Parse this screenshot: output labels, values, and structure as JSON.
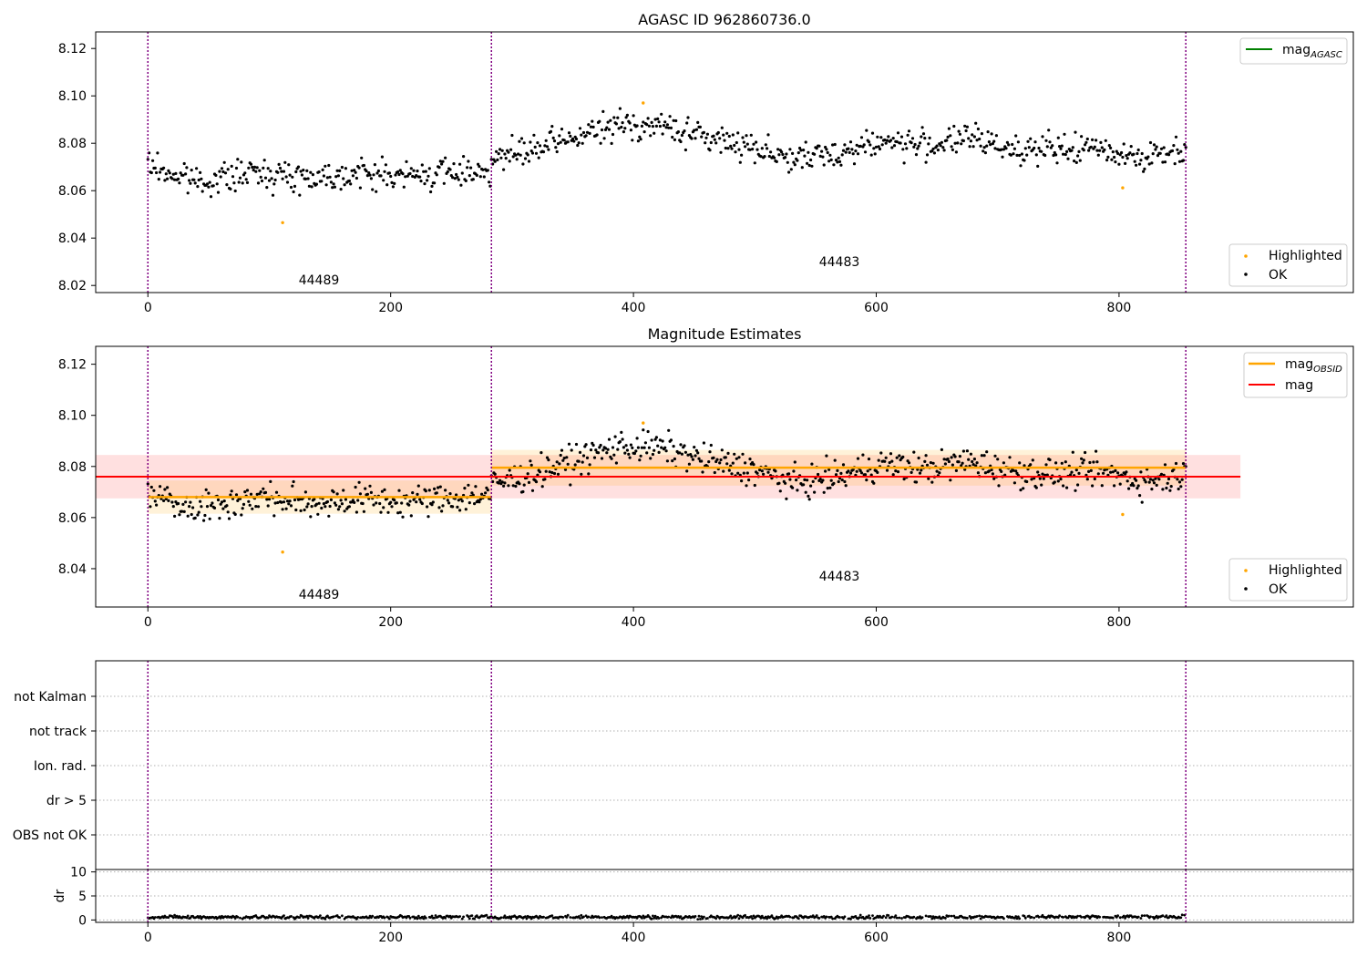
{
  "chart_data": [
    {
      "type": "scatter",
      "title": "AGASC ID 962860736.0",
      "xlabel": "",
      "ylabel": "",
      "xlim": [
        -43,
        993
      ],
      "ylim": [
        8.017,
        8.127
      ],
      "x_ticks": [
        "0",
        "200",
        "400",
        "600",
        "800"
      ],
      "x_tick_values": [
        0,
        200,
        400,
        600,
        800
      ],
      "y_ticks": [
        "8.02",
        "8.04",
        "8.06",
        "8.08",
        "8.10",
        "8.12"
      ],
      "y_tick_values": [
        8.02,
        8.04,
        8.06,
        8.08,
        8.1,
        8.12
      ],
      "vlines": [
        0,
        283,
        855
      ],
      "vline_color": "#800080",
      "obsid_labels": [
        {
          "text": "44489",
          "x": 125,
          "y": 8.022
        },
        {
          "text": "44483",
          "x": 553,
          "y": 8.029
        }
      ],
      "legend_upper": [
        {
          "label": "mag",
          "sub": "AGASC",
          "color": "#008000",
          "kind": "line"
        }
      ],
      "legend_lower": [
        {
          "label": "Highlighted",
          "color": "#ffa500",
          "kind": "dot"
        },
        {
          "label": "OK",
          "color": "#000000",
          "kind": "dot"
        }
      ],
      "series": [
        {
          "name": "OK",
          "color": "#000000",
          "segments": [
            {
              "x0": 0,
              "x1": 282,
              "means": [
                8.071,
                8.066,
                8.064,
                8.066,
                8.068,
                8.066,
                8.066,
                8.067,
                8.067,
                8.066,
                8.067,
                8.068,
                8.069
              ],
              "spread": 0.006
            },
            {
              "x0": 283,
              "x1": 855,
              "means": [
                8.073,
                8.077,
                8.083,
                8.088,
                8.087,
                8.082,
                8.079,
                8.073,
                8.076,
                8.081,
                8.079,
                8.082,
                8.078,
                8.077,
                8.078,
                8.074,
                8.077
              ],
              "spread": 0.006
            }
          ]
        },
        {
          "name": "Highlighted",
          "color": "#ffa500",
          "points": [
            [
              111,
              8.0465
            ],
            [
              408,
              8.097
            ],
            [
              803,
              8.0612
            ]
          ]
        }
      ]
    },
    {
      "type": "scatter",
      "title": "Magnitude Estimates",
      "xlabel": "",
      "ylabel": "",
      "xlim": [
        -43,
        993
      ],
      "ylim": [
        8.025,
        8.127
      ],
      "x_ticks": [
        "0",
        "200",
        "400",
        "600",
        "800"
      ],
      "x_tick_values": [
        0,
        200,
        400,
        600,
        800
      ],
      "y_ticks": [
        "8.04",
        "8.06",
        "8.08",
        "8.10",
        "8.12"
      ],
      "y_tick_values": [
        8.04,
        8.06,
        8.08,
        8.1,
        8.12
      ],
      "vlines": [
        0,
        283,
        855
      ],
      "vline_color": "#800080",
      "obsid_labels": [
        {
          "text": "44489",
          "x": 125,
          "y": 8.029
        },
        {
          "text": "44483",
          "x": 553,
          "y": 8.036
        }
      ],
      "legend_upper": [
        {
          "label": "mag",
          "sub": "OBSID",
          "color": "#ffa500",
          "kind": "line"
        },
        {
          "label": "mag",
          "sub": "",
          "color": "#ff0000",
          "kind": "line"
        }
      ],
      "legend_lower": [
        {
          "label": "Highlighted",
          "color": "#ffa500",
          "kind": "dot"
        },
        {
          "label": "OK",
          "color": "#000000",
          "kind": "dot"
        }
      ],
      "mag_line": {
        "value": 8.076,
        "band": [
          8.0675,
          8.0845
        ],
        "x0": -43,
        "x1": 900,
        "color": "#ff0000"
      },
      "obsid_mags": [
        {
          "x0": 0,
          "x1": 283,
          "value": 8.068,
          "band": [
            8.0615,
            8.0745
          ]
        },
        {
          "x0": 283,
          "x1": 855,
          "value": 8.0795,
          "band": [
            8.0725,
            8.0865
          ]
        }
      ],
      "series": [
        {
          "name": "OK",
          "color": "#000000",
          "segments": [
            {
              "x0": 0,
              "x1": 282,
              "means": [
                8.071,
                8.066,
                8.064,
                8.066,
                8.068,
                8.066,
                8.066,
                8.067,
                8.067,
                8.066,
                8.067,
                8.068,
                8.069
              ],
              "spread": 0.006
            },
            {
              "x0": 283,
              "x1": 855,
              "means": [
                8.073,
                8.077,
                8.083,
                8.088,
                8.087,
                8.082,
                8.079,
                8.073,
                8.076,
                8.081,
                8.079,
                8.082,
                8.078,
                8.077,
                8.078,
                8.074,
                8.077
              ],
              "spread": 0.006
            }
          ]
        },
        {
          "name": "Highlighted",
          "color": "#ffa500",
          "points": [
            [
              111,
              8.0465
            ],
            [
              408,
              8.097
            ],
            [
              803,
              8.0612
            ]
          ]
        }
      ]
    },
    {
      "type": "scatter",
      "title": "",
      "xlim": [
        -43,
        993
      ],
      "x_ticks": [],
      "vlines": [
        0,
        283,
        855
      ],
      "vline_color": "#800080",
      "flag_labels": [
        "not Kalman",
        "not track",
        "Ion. rad.",
        "dr > 5",
        "OBS not OK"
      ],
      "series": []
    },
    {
      "type": "scatter",
      "title": "",
      "xlabel": "",
      "ylabel": "dr",
      "xlim": [
        -43,
        993
      ],
      "ylim": [
        -0.5,
        10.5
      ],
      "x_ticks": [
        "0",
        "200",
        "400",
        "600",
        "800"
      ],
      "x_tick_values": [
        0,
        200,
        400,
        600,
        800
      ],
      "y_ticks": [
        "0",
        "5",
        "10"
      ],
      "y_tick_values": [
        0,
        5,
        10
      ],
      "vlines": [
        0,
        283,
        855
      ],
      "vline_color": "#800080",
      "series": [
        {
          "name": "dr",
          "color": "#000000",
          "x0": 0,
          "x1": 855,
          "mean": 0.6,
          "spread": 0.35
        }
      ]
    }
  ]
}
